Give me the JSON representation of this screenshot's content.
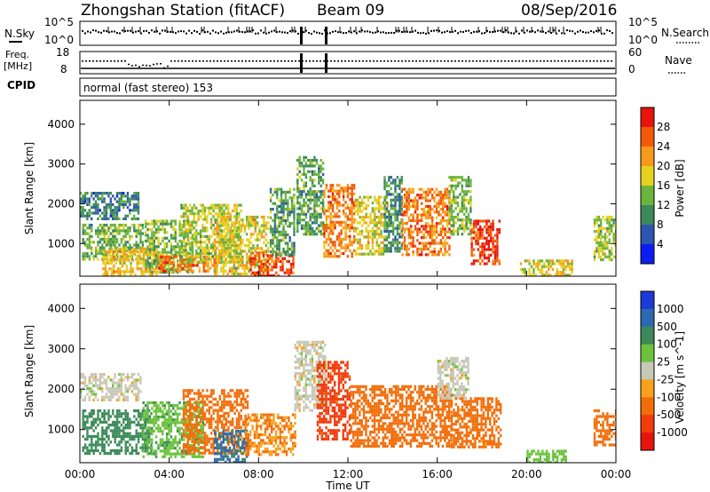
{
  "header": {
    "title": "Zhongshan Station (fitACF)",
    "beam": "Beam 09",
    "date": "08/Sep/2016"
  },
  "noise_panel": {
    "left_label": "N.Sky",
    "left_ticks": [
      "10^5",
      "10^0"
    ],
    "right_label": "N.Search",
    "right_ticks": [
      "10^5",
      "10^0"
    ]
  },
  "freq_panel": {
    "left_label_line1": "Freq.",
    "left_label_line2": "[MHz]",
    "left_ticks": [
      "18",
      "8"
    ],
    "right_label": "Nave",
    "right_ticks": [
      "60",
      "0"
    ]
  },
  "cpid": {
    "label": "CPID",
    "text": "normal (fast stereo) 153"
  },
  "x_axis": {
    "label": "Time UT",
    "ticks": [
      "00:00",
      "04:00",
      "08:00",
      "12:00",
      "16:00",
      "20:00",
      "00:00"
    ]
  },
  "chart_data": [
    {
      "type": "heatmap",
      "title": "",
      "xlabel": "Time UT",
      "ylabel": "Slant Range [km]",
      "xlim_hours": [
        0,
        24
      ],
      "ylim": [
        180,
        4600
      ],
      "y_ticks": [
        1000,
        2000,
        3000,
        4000
      ],
      "colorbar": {
        "label": "Power [dB]",
        "ticks": [
          "28",
          "24",
          "20",
          "16",
          "12",
          "8",
          "4"
        ],
        "colors": [
          "#e8140c",
          "#f25a0a",
          "#f79a1c",
          "#e6d020",
          "#6cb43c",
          "#3c8a5a",
          "#2c56b0",
          "#0c1cf2"
        ]
      },
      "regions": [
        {
          "t0": 0.0,
          "t1": 2.6,
          "r0": 1600,
          "r1": 2300,
          "v": 9
        },
        {
          "t0": 0.1,
          "t1": 2.8,
          "r0": 600,
          "r1": 1500,
          "v": 14
        },
        {
          "t0": 1.0,
          "t1": 3.4,
          "r0": 200,
          "r1": 900,
          "v": 20
        },
        {
          "t0": 2.9,
          "t1": 5.0,
          "r0": 300,
          "r1": 1600,
          "v": 14
        },
        {
          "t0": 3.5,
          "t1": 6.1,
          "r0": 300,
          "r1": 700,
          "v": 24
        },
        {
          "t0": 4.5,
          "t1": 7.2,
          "r0": 500,
          "r1": 2000,
          "v": 16
        },
        {
          "t0": 6.0,
          "t1": 8.4,
          "r0": 200,
          "r1": 1700,
          "v": 18
        },
        {
          "t0": 7.6,
          "t1": 9.6,
          "r0": 200,
          "r1": 800,
          "v": 27
        },
        {
          "t0": 8.5,
          "t1": 9.6,
          "r0": 700,
          "r1": 2400,
          "v": 12
        },
        {
          "t0": 9.7,
          "t1": 10.9,
          "r0": 1200,
          "r1": 3200,
          "v": 12
        },
        {
          "t0": 10.9,
          "t1": 12.3,
          "r0": 700,
          "r1": 2500,
          "v": 24
        },
        {
          "t0": 12.3,
          "t1": 13.8,
          "r0": 700,
          "r1": 2200,
          "v": 18
        },
        {
          "t0": 13.6,
          "t1": 14.4,
          "r0": 800,
          "r1": 2700,
          "v": 10
        },
        {
          "t0": 14.4,
          "t1": 16.5,
          "r0": 700,
          "r1": 2400,
          "v": 24
        },
        {
          "t0": 16.5,
          "t1": 17.5,
          "r0": 1200,
          "r1": 2700,
          "v": 14
        },
        {
          "t0": 17.5,
          "t1": 18.8,
          "r0": 500,
          "r1": 1600,
          "v": 28
        },
        {
          "t0": 19.7,
          "t1": 22.0,
          "r0": 200,
          "r1": 600,
          "v": 18
        },
        {
          "t0": 23.0,
          "t1": 24.0,
          "r0": 600,
          "r1": 1700,
          "v": 16
        }
      ]
    },
    {
      "type": "heatmap",
      "title": "",
      "xlabel": "Time UT",
      "ylabel": "Slant Range [km]",
      "xlim_hours": [
        0,
        24
      ],
      "ylim": [
        180,
        4600
      ],
      "y_ticks": [
        1000,
        2000,
        3000,
        4000
      ],
      "colorbar": {
        "label": "Velocity [m s^-1]",
        "ticks": [
          "1000",
          "500",
          "100",
          "25",
          "-25",
          "-100",
          "-500",
          "-1000"
        ],
        "colors": [
          "#1c3ad6",
          "#2c6ab0",
          "#3c8a5a",
          "#6cc23c",
          "#c8c8b8",
          "#f7a21c",
          "#f26e0a",
          "#f23c0c",
          "#e8140c"
        ]
      },
      "regions": [
        {
          "t0": 0.0,
          "t1": 2.7,
          "r0": 1700,
          "r1": 2400,
          "v": 0
        },
        {
          "t0": 0.1,
          "t1": 3.2,
          "r0": 400,
          "r1": 1500,
          "v": 200
        },
        {
          "t0": 2.8,
          "t1": 5.5,
          "r0": 300,
          "r1": 1700,
          "v": 80
        },
        {
          "t0": 4.6,
          "t1": 7.5,
          "r0": 400,
          "r1": 2000,
          "v": -150
        },
        {
          "t0": 6.0,
          "t1": 7.5,
          "r0": 200,
          "r1": 1000,
          "v": 600
        },
        {
          "t0": 7.4,
          "t1": 9.6,
          "r0": 400,
          "r1": 1400,
          "v": -100
        },
        {
          "t0": 9.6,
          "t1": 11.0,
          "r0": 1500,
          "r1": 3200,
          "v": 0
        },
        {
          "t0": 10.6,
          "t1": 12.1,
          "r0": 800,
          "r1": 2700,
          "v": -700
        },
        {
          "t0": 12.1,
          "t1": 16.6,
          "r0": 600,
          "r1": 2100,
          "v": -180
        },
        {
          "t0": 16.0,
          "t1": 17.4,
          "r0": 1800,
          "r1": 2800,
          "v": 0
        },
        {
          "t0": 16.6,
          "t1": 18.8,
          "r0": 600,
          "r1": 1800,
          "v": -140
        },
        {
          "t0": 20.0,
          "t1": 21.8,
          "r0": 200,
          "r1": 500,
          "v": 60
        },
        {
          "t0": 23.0,
          "t1": 24.0,
          "r0": 600,
          "r1": 1500,
          "v": -200
        }
      ]
    }
  ]
}
